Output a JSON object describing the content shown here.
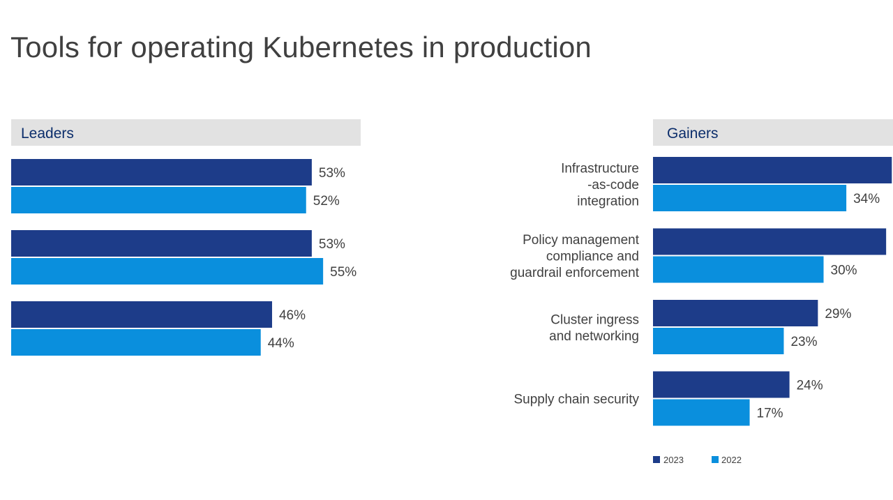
{
  "title": "Tools for operating Kubernetes in production",
  "colors": {
    "2023": "#1d3c89",
    "2022": "#0a8fdd",
    "panel_header_bg": "#e2e2e2",
    "panel_header_text": "#0b2d6b",
    "text": "#404040"
  },
  "chart_data": [
    {
      "type": "bar",
      "orientation": "horizontal",
      "panel_title": "Leaders",
      "categories": [
        "",
        "",
        ""
      ],
      "series": [
        {
          "name": "2023",
          "values": [
            53,
            53,
            46
          ],
          "labels": [
            "53%",
            "53%",
            "46%"
          ]
        },
        {
          "name": "2022",
          "values": [
            52,
            55,
            44
          ],
          "labels": [
            "52%",
            "55%",
            "44%"
          ]
        }
      ],
      "unit": "%",
      "grid": false
    },
    {
      "type": "bar",
      "orientation": "horizontal",
      "panel_title": "Gainers",
      "categories": [
        [
          "Infrastructure",
          "-as-code",
          "integration"
        ],
        [
          "Policy management",
          "compliance and",
          "guardrail enforcement"
        ],
        [
          "Cluster ingress",
          "and networking"
        ],
        [
          "Supply chain security"
        ]
      ],
      "series": [
        {
          "name": "2023",
          "values": [
            42,
            41,
            29,
            24
          ],
          "labels": [
            "",
            "",
            "29%",
            "24%"
          ]
        },
        {
          "name": "2022",
          "values": [
            34,
            30,
            23,
            17
          ],
          "labels": [
            "34%",
            "30%",
            "23%",
            "17%"
          ]
        }
      ],
      "unit": "%",
      "grid": false
    }
  ],
  "legend": {
    "position": "bottom-right",
    "items": [
      "2023",
      "2022"
    ]
  }
}
